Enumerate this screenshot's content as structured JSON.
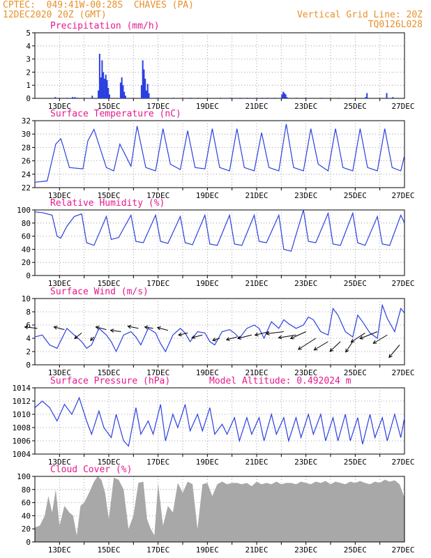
{
  "header": {
    "line1": "CPTEC:  049:41W-00:28S  CHAVES (PA)",
    "line2": "12DEC2020 20Z (GMT)",
    "right1": "Vertical Grid Line: 20Z",
    "right2": "TQ0126L028",
    "model_altitude": "Model Altitude: 0.492024 m"
  },
  "colors": {
    "header": "#e8902a",
    "title": "#e6198c",
    "series": "#2a3fe0",
    "cloud": "#a8a8a8",
    "wind_arrow": "#000000"
  },
  "x_ticks": [
    "13DEC",
    "15DEC",
    "17DEC",
    "19DEC",
    "21DEC",
    "23DEC",
    "25DEC",
    "27DEC"
  ],
  "chart_data": [
    {
      "type": "bar",
      "title": "Precipitation (mm/h)",
      "ylim": [
        0,
        5
      ],
      "yticks": [
        "0",
        "1",
        "2",
        "3",
        "4",
        "5"
      ],
      "x_days": [
        0.8,
        1.3,
        1.5,
        1.55,
        1.6,
        1.7,
        2.3,
        2.55,
        2.6,
        2.65,
        2.7,
        2.75,
        2.8,
        2.85,
        2.9,
        2.95,
        3.0,
        3.45,
        3.5,
        3.55,
        3.6,
        3.65,
        4.3,
        4.35,
        4.4,
        4.45,
        4.5,
        4.55,
        4.6,
        4.9,
        5.6,
        6.3,
        6.6,
        7.5,
        7.9,
        8.3,
        8.6,
        9.2,
        9.4,
        9.7,
        10.0,
        10.05,
        10.1,
        10.15,
        10.2,
        10.6,
        10.95,
        11.6,
        12.3,
        13.4,
        13.45,
        14.25,
        14.5
      ],
      "values": [
        0.1,
        0.05,
        0.1,
        0.05,
        0.1,
        0.05,
        0.2,
        0.6,
        3.4,
        1.6,
        2.9,
        2.0,
        1.5,
        1.8,
        1.4,
        0.8,
        0.3,
        1.2,
        1.6,
        1.0,
        0.5,
        0.2,
        1.0,
        2.9,
        2.2,
        1.5,
        0.6,
        1.1,
        0.4,
        0.05,
        0.05,
        0.05,
        0.05,
        0.05,
        0.05,
        0.05,
        0.05,
        0.05,
        0.05,
        0.05,
        0.3,
        0.5,
        0.4,
        0.3,
        0.1,
        0.05,
        0.05,
        0.05,
        0.05,
        0.1,
        0.4,
        0.4,
        0.1
      ]
    },
    {
      "type": "line",
      "title": "Surface Temperature (nC)",
      "ylim": [
        22,
        32
      ],
      "yticks": [
        "22",
        "24",
        "26",
        "28",
        "30",
        "32"
      ],
      "x_days": [
        0.0,
        0.5,
        0.85,
        1.05,
        1.15,
        1.4,
        1.95,
        2.15,
        2.4,
        2.9,
        3.2,
        3.45,
        3.9,
        4.15,
        4.5,
        4.9,
        5.2,
        5.5,
        5.9,
        6.2,
        6.5,
        6.9,
        7.2,
        7.5,
        7.9,
        8.2,
        8.5,
        8.9,
        9.2,
        9.5,
        9.9,
        10.2,
        10.5,
        10.9,
        11.2,
        11.5,
        11.9,
        12.2,
        12.5,
        12.9,
        13.2,
        13.5,
        13.9,
        14.2,
        14.5,
        14.85,
        15.0
      ],
      "values": [
        22.8,
        23.0,
        28.5,
        29.3,
        28.2,
        25.0,
        24.8,
        29.0,
        30.7,
        25.0,
        24.5,
        28.5,
        25.2,
        31.2,
        25.0,
        24.5,
        30.8,
        25.5,
        24.7,
        30.5,
        25.0,
        24.8,
        30.8,
        25.0,
        24.5,
        30.8,
        25.0,
        24.5,
        30.2,
        25.0,
        24.5,
        31.5,
        25.0,
        24.5,
        30.8,
        25.5,
        24.5,
        30.8,
        25.0,
        24.5,
        30.8,
        25.0,
        24.5,
        30.8,
        25.0,
        24.5,
        26.8
      ]
    },
    {
      "type": "line",
      "title": "Relative Humidity (%)",
      "ylim": [
        0,
        100
      ],
      "yticks": [
        "0",
        "20",
        "40",
        "60",
        "80",
        "100"
      ],
      "x_days": [
        0.0,
        0.3,
        0.7,
        0.9,
        1.05,
        1.3,
        1.6,
        1.9,
        2.1,
        2.4,
        2.9,
        3.1,
        3.4,
        3.9,
        4.1,
        4.4,
        4.9,
        5.1,
        5.4,
        5.9,
        6.1,
        6.4,
        6.9,
        7.1,
        7.4,
        7.9,
        8.1,
        8.4,
        8.9,
        9.1,
        9.4,
        9.9,
        10.1,
        10.4,
        10.9,
        11.1,
        11.4,
        11.9,
        12.1,
        12.4,
        12.9,
        13.1,
        13.4,
        13.9,
        14.1,
        14.4,
        14.85,
        15.0
      ],
      "values": [
        97,
        96,
        92,
        60,
        57,
        75,
        90,
        94,
        50,
        46,
        90,
        55,
        58,
        92,
        52,
        50,
        92,
        52,
        49,
        90,
        50,
        47,
        92,
        48,
        46,
        92,
        48,
        46,
        92,
        52,
        50,
        92,
        40,
        37,
        100,
        52,
        50,
        95,
        48,
        46,
        95,
        50,
        46,
        90,
        48,
        46,
        92,
        80
      ]
    },
    {
      "type": "line",
      "title": "Surface Wind (m/s)",
      "ylim": [
        0,
        10
      ],
      "yticks": [
        "0",
        "2",
        "4",
        "6",
        "8",
        "10"
      ],
      "x_days": [
        0.0,
        0.3,
        0.6,
        0.9,
        1.1,
        1.3,
        1.6,
        1.9,
        2.1,
        2.3,
        2.6,
        2.9,
        3.1,
        3.3,
        3.6,
        3.9,
        4.1,
        4.3,
        4.6,
        4.9,
        5.1,
        5.3,
        5.6,
        5.9,
        6.1,
        6.3,
        6.6,
        6.9,
        7.1,
        7.3,
        7.6,
        7.9,
        8.1,
        8.3,
        8.6,
        8.9,
        9.1,
        9.3,
        9.6,
        9.9,
        10.1,
        10.3,
        10.6,
        10.9,
        11.1,
        11.3,
        11.6,
        11.9,
        12.1,
        12.3,
        12.6,
        12.9,
        13.1,
        13.3,
        13.6,
        13.9,
        14.1,
        14.3,
        14.6,
        14.85,
        15.0
      ],
      "values": [
        4.2,
        4.5,
        3.0,
        2.5,
        4.0,
        5.5,
        4.5,
        3.5,
        2.5,
        3.0,
        5.5,
        4.5,
        3.5,
        2.0,
        4.5,
        5.0,
        4.2,
        3.0,
        5.5,
        4.8,
        3.2,
        2.0,
        4.5,
        5.5,
        4.8,
        3.5,
        5.0,
        4.8,
        3.5,
        3.0,
        5.0,
        5.3,
        4.8,
        4.0,
        5.5,
        6.0,
        5.5,
        4.0,
        6.5,
        5.5,
        6.8,
        6.2,
        5.5,
        6.0,
        7.2,
        6.8,
        5.0,
        4.5,
        8.5,
        7.5,
        5.0,
        4.2,
        7.5,
        6.5,
        4.8,
        4.0,
        9.0,
        7.0,
        5.0,
        8.5,
        7.8
      ],
      "arrows": {
        "x_days": [
          0.1,
          1.2,
          1.9,
          2.4,
          2.9,
          3.5,
          4.2,
          4.8,
          5.4,
          6.2,
          6.8,
          7.5,
          8.2,
          8.8,
          9.5,
          10.1,
          10.6,
          11.0,
          11.4,
          11.9,
          12.4,
          12.9,
          13.4,
          13.9,
          14.3,
          14.8
        ],
        "y_values": [
          5.5,
          5.3,
          4.8,
          4.2,
          5.3,
          5.0,
          5.5,
          5.5,
          5.2,
          4.8,
          4.5,
          4.0,
          4.2,
          4.5,
          5.0,
          5.0,
          4.5,
          5.0,
          4.0,
          3.5,
          3.5,
          3.5,
          4.8,
          5.0,
          4.5,
          3.0
        ],
        "u": [
          -1.8,
          -1.5,
          -1.0,
          -0.5,
          -1.5,
          -1.5,
          -1.5,
          -1.2,
          -1.5,
          -1.3,
          -1.5,
          -1.0,
          -1.5,
          -2.0,
          -2.0,
          -2.5,
          -2.5,
          -2.2,
          -2.5,
          -2.0,
          -1.5,
          -1.0,
          -2.0,
          -2.5,
          -2.0,
          -1.5
        ],
        "v": [
          0.2,
          0.4,
          -0.8,
          -0.5,
          0.4,
          0.2,
          0.3,
          0.2,
          0.4,
          -0.3,
          -0.4,
          -0.3,
          -0.4,
          -0.5,
          -0.5,
          -0.3,
          -0.4,
          -1.0,
          -1.6,
          -1.2,
          -1.4,
          -1.5,
          -1.3,
          -1.0,
          -1.2,
          -1.8
        ]
      }
    },
    {
      "type": "line",
      "title": "Surface Pressure (hPa)",
      "ylim": [
        1004,
        1014
      ],
      "yticks": [
        "1004",
        "1006",
        "1008",
        "1010",
        "1012",
        "1014"
      ],
      "x_days": [
        0.0,
        0.3,
        0.6,
        0.9,
        1.2,
        1.5,
        1.8,
        2.1,
        2.3,
        2.6,
        2.8,
        3.1,
        3.3,
        3.6,
        3.8,
        4.1,
        4.3,
        4.6,
        4.8,
        5.1,
        5.3,
        5.6,
        5.8,
        6.1,
        6.3,
        6.6,
        6.8,
        7.1,
        7.3,
        7.6,
        7.8,
        8.1,
        8.3,
        8.6,
        8.8,
        9.1,
        9.3,
        9.6,
        9.8,
        10.1,
        10.3,
        10.6,
        10.8,
        11.1,
        11.3,
        11.6,
        11.8,
        12.1,
        12.3,
        12.6,
        12.8,
        13.1,
        13.3,
        13.6,
        13.8,
        14.1,
        14.3,
        14.6,
        14.85,
        15.0
      ],
      "values": [
        1011,
        1012,
        1011,
        1009,
        1011.5,
        1010,
        1012.5,
        1009,
        1007,
        1010.5,
        1008,
        1006.5,
        1010,
        1006,
        1005.2,
        1011,
        1007,
        1009,
        1007,
        1011.5,
        1006,
        1010,
        1008,
        1011.5,
        1007.5,
        1010,
        1007.5,
        1011,
        1007,
        1008.5,
        1007,
        1009.5,
        1006,
        1009.5,
        1007,
        1009.5,
        1006,
        1010,
        1007,
        1009.5,
        1006,
        1009.5,
        1006.5,
        1010,
        1007,
        1010,
        1006,
        1009.5,
        1006,
        1010,
        1006,
        1009.5,
        1005.5,
        1010,
        1006.5,
        1009.5,
        1006,
        1010,
        1006.5,
        1009.5
      ]
    },
    {
      "type": "area",
      "title": "Cloud Cover (%)",
      "ylim": [
        0,
        100
      ],
      "yticks": [
        "0",
        "20",
        "40",
        "60",
        "80",
        "100"
      ],
      "x_days": [
        0.0,
        0.2,
        0.4,
        0.55,
        0.7,
        0.85,
        1.0,
        1.2,
        1.4,
        1.55,
        1.7,
        1.85,
        2.0,
        2.2,
        2.4,
        2.55,
        2.7,
        2.85,
        3.0,
        3.2,
        3.4,
        3.6,
        3.8,
        4.0,
        4.2,
        4.4,
        4.55,
        4.7,
        4.85,
        5.0,
        5.2,
        5.4,
        5.6,
        5.8,
        6.0,
        6.2,
        6.4,
        6.6,
        6.8,
        7.0,
        7.2,
        7.4,
        7.6,
        7.8,
        8.0,
        8.2,
        8.4,
        8.6,
        8.8,
        9.0,
        9.2,
        9.4,
        9.6,
        9.8,
        10.0,
        10.2,
        10.4,
        10.6,
        10.8,
        11.0,
        11.2,
        11.4,
        11.6,
        11.8,
        12.0,
        12.2,
        12.4,
        12.6,
        12.8,
        13.0,
        13.2,
        13.4,
        13.6,
        13.8,
        14.0,
        14.2,
        14.4,
        14.6,
        14.8,
        15.0
      ],
      "values": [
        22,
        25,
        40,
        70,
        45,
        80,
        25,
        55,
        45,
        40,
        10,
        55,
        60,
        75,
        92,
        100,
        95,
        75,
        35,
        98,
        95,
        80,
        20,
        40,
        90,
        92,
        35,
        20,
        10,
        90,
        25,
        55,
        45,
        90,
        75,
        92,
        88,
        20,
        88,
        90,
        70,
        88,
        92,
        88,
        90,
        90,
        88,
        90,
        85,
        92,
        88,
        90,
        88,
        92,
        88,
        90,
        90,
        88,
        92,
        90,
        88,
        92,
        90,
        93,
        88,
        92,
        90,
        88,
        92,
        90,
        93,
        90,
        88,
        92,
        90,
        95,
        92,
        94,
        88,
        68
      ]
    }
  ]
}
